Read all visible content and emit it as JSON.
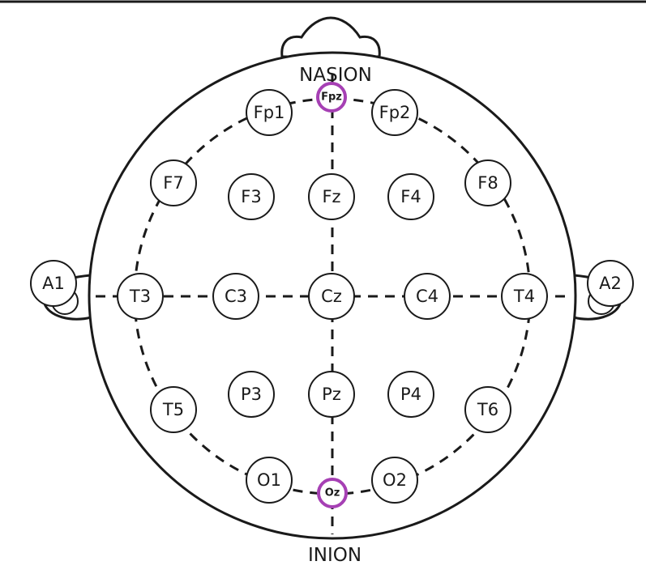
{
  "landmarks": {
    "nasion": "NASION",
    "inion": "INION"
  },
  "electrodes": {
    "fp1": "Fp1",
    "fpz": "Fpz",
    "fp2": "Fp2",
    "f7": "F7",
    "f3": "F3",
    "fz": "Fz",
    "f4": "F4",
    "f8": "F8",
    "a1": "A1",
    "t3": "T3",
    "c3": "C3",
    "cz": "Cz",
    "c4": "C4",
    "t4": "T4",
    "a2": "A2",
    "t5": "T5",
    "p3": "P3",
    "pz": "Pz",
    "p4": "P4",
    "t6": "T6",
    "o1": "O1",
    "oz": "Oz",
    "o2": "O2"
  },
  "colors": {
    "outline": "#1a1a1a",
    "highlight": "#a640b4"
  },
  "highlighted": [
    "Fpz",
    "Oz"
  ]
}
